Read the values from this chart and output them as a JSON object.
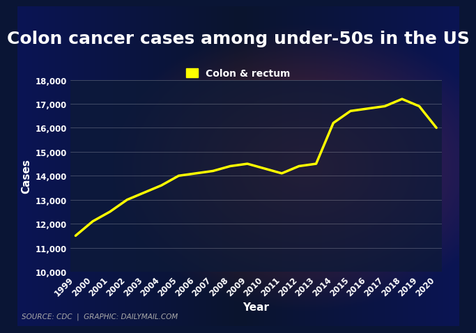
{
  "title": "Colon cancer cases among under-50s in the US",
  "xlabel": "Year",
  "ylabel": "Cases",
  "legend_label": "Colon & rectum",
  "source_text": "SOURCE: CDC  |  GRAPHIC: DAILYMAIL.COM",
  "years": [
    1999,
    2000,
    2001,
    2002,
    2003,
    2004,
    2005,
    2006,
    2007,
    2008,
    2009,
    2010,
    2011,
    2012,
    2013,
    2014,
    2015,
    2016,
    2017,
    2018,
    2019,
    2020
  ],
  "values": [
    11500,
    12100,
    12500,
    13000,
    13300,
    13600,
    14000,
    14100,
    14200,
    14400,
    14500,
    14300,
    14100,
    14400,
    14500,
    16200,
    16700,
    16800,
    16900,
    17200,
    16900,
    16000
  ],
  "line_color": "#FFFF00",
  "line_width": 2.5,
  "bg_color": "#0a1535",
  "plot_bg_color": "#0d1a3a",
  "text_color": "#ffffff",
  "grid_color": "#ffffff",
  "grid_alpha": 0.3,
  "ylim": [
    10000,
    18000
  ],
  "yticks": [
    10000,
    11000,
    12000,
    13000,
    14000,
    15000,
    16000,
    17000,
    18000
  ],
  "title_fontsize": 18,
  "axis_label_fontsize": 11,
  "tick_fontsize": 8.5,
  "legend_fontsize": 10,
  "source_fontsize": 7.5,
  "source_bar_color": "#1a2550"
}
